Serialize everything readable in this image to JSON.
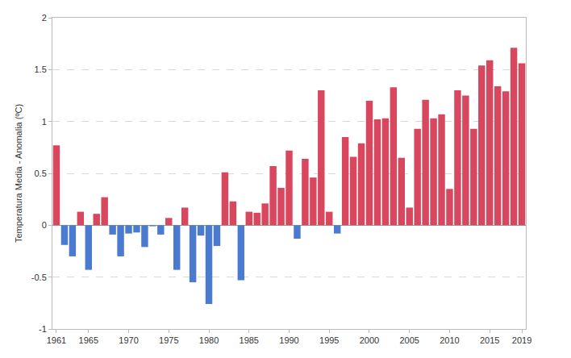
{
  "chart_data": {
    "type": "bar",
    "y_label": "Temperatura Media - Anomalia (ºC)",
    "x": [
      1961,
      1962,
      1963,
      1964,
      1965,
      1966,
      1967,
      1968,
      1969,
      1970,
      1971,
      1972,
      1973,
      1974,
      1975,
      1976,
      1977,
      1978,
      1979,
      1980,
      1981,
      1982,
      1983,
      1984,
      1985,
      1986,
      1987,
      1988,
      1989,
      1990,
      1991,
      1992,
      1993,
      1994,
      1995,
      1996,
      1997,
      1998,
      1999,
      2000,
      2001,
      2002,
      2003,
      2004,
      2005,
      2006,
      2007,
      2008,
      2009,
      2010,
      2011,
      2012,
      2013,
      2014,
      2015,
      2016,
      2017,
      2018,
      2019
    ],
    "values": [
      0.77,
      -0.19,
      -0.3,
      0.13,
      -0.43,
      0.11,
      0.27,
      -0.09,
      -0.3,
      -0.08,
      -0.07,
      -0.21,
      -0.01,
      -0.09,
      0.07,
      -0.43,
      0.17,
      -0.55,
      -0.1,
      -0.76,
      -0.2,
      0.51,
      0.23,
      -0.53,
      0.13,
      0.12,
      0.21,
      0.57,
      0.36,
      0.72,
      -0.13,
      0.64,
      0.46,
      1.3,
      0.13,
      -0.08,
      0.85,
      0.66,
      0.79,
      1.2,
      1.02,
      1.03,
      1.33,
      0.65,
      0.17,
      0.93,
      1.21,
      1.03,
      1.07,
      0.35,
      1.3,
      1.25,
      0.93,
      1.54,
      1.59,
      1.34,
      1.29,
      1.71,
      1.56
    ],
    "colors": [
      "#d9475f",
      "#4a7bd0",
      "#4a7bd0",
      "#d9475f",
      "#4a7bd0",
      "#d9475f",
      "#d9475f",
      "#4a7bd0",
      "#4a7bd0",
      "#4a7bd0",
      "#4a7bd0",
      "#4a7bd0",
      "#4a7bd0",
      "#4a7bd0",
      "#d9475f",
      "#4a7bd0",
      "#d9475f",
      "#4a7bd0",
      "#4a7bd0",
      "#4a7bd0",
      "#4a7bd0",
      "#d9475f",
      "#d9475f",
      "#4a7bd0",
      "#d9475f",
      "#d9475f",
      "#d9475f",
      "#d9475f",
      "#d9475f",
      "#d9475f",
      "#4a7bd0",
      "#d9475f",
      "#d9475f",
      "#d9475f",
      "#d9475f",
      "#4a7bd0",
      "#d9475f",
      "#d9475f",
      "#d9475f",
      "#d9475f",
      "#d9475f",
      "#d9475f",
      "#d9475f",
      "#d9475f",
      "#d9475f",
      "#d9475f",
      "#d9475f",
      "#d9475f",
      "#d9475f",
      "#d9475f",
      "#d9475f",
      "#d9475f",
      "#d9475f",
      "#d9475f",
      "#d9475f",
      "#d9475f",
      "#d9475f",
      "#d9475f",
      "#d9475f"
    ],
    "xlim": [
      1960.5,
      2019.5
    ],
    "xticks": [
      1961,
      1965,
      1970,
      1975,
      1980,
      1985,
      1990,
      1995,
      2000,
      2005,
      2010,
      2015,
      2019
    ],
    "ylim": [
      -1,
      2
    ],
    "yticks": [
      -1,
      -0.5,
      0,
      0.5,
      1,
      1.5,
      2
    ],
    "grid": true
  }
}
